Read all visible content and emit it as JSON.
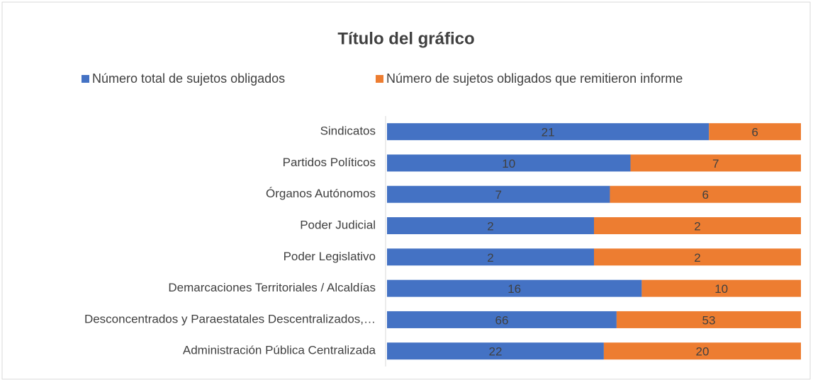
{
  "chart_data": {
    "type": "bar",
    "orientation": "horizontal",
    "stacking": "percent",
    "title": "Título del gráfico",
    "categories": [
      "Sindicatos",
      "Partidos Políticos",
      "Órganos Autónomos",
      "Poder Judicial",
      "Poder Legislativo",
      "Demarcaciones Territoriales / Alcaldías",
      "Desconcentrados y Paraestatales Descentralizados,…",
      "Administración Pública Centralizada"
    ],
    "series": [
      {
        "name": "Número total de sujetos obligados",
        "color": "#4472c4",
        "values": [
          21,
          10,
          7,
          2,
          2,
          16,
          66,
          22
        ]
      },
      {
        "name": "Número de sujetos obligados que remitieron informe",
        "color": "#ed7d31",
        "values": [
          6,
          7,
          6,
          2,
          2,
          10,
          53,
          20
        ]
      }
    ],
    "legend": "top"
  }
}
